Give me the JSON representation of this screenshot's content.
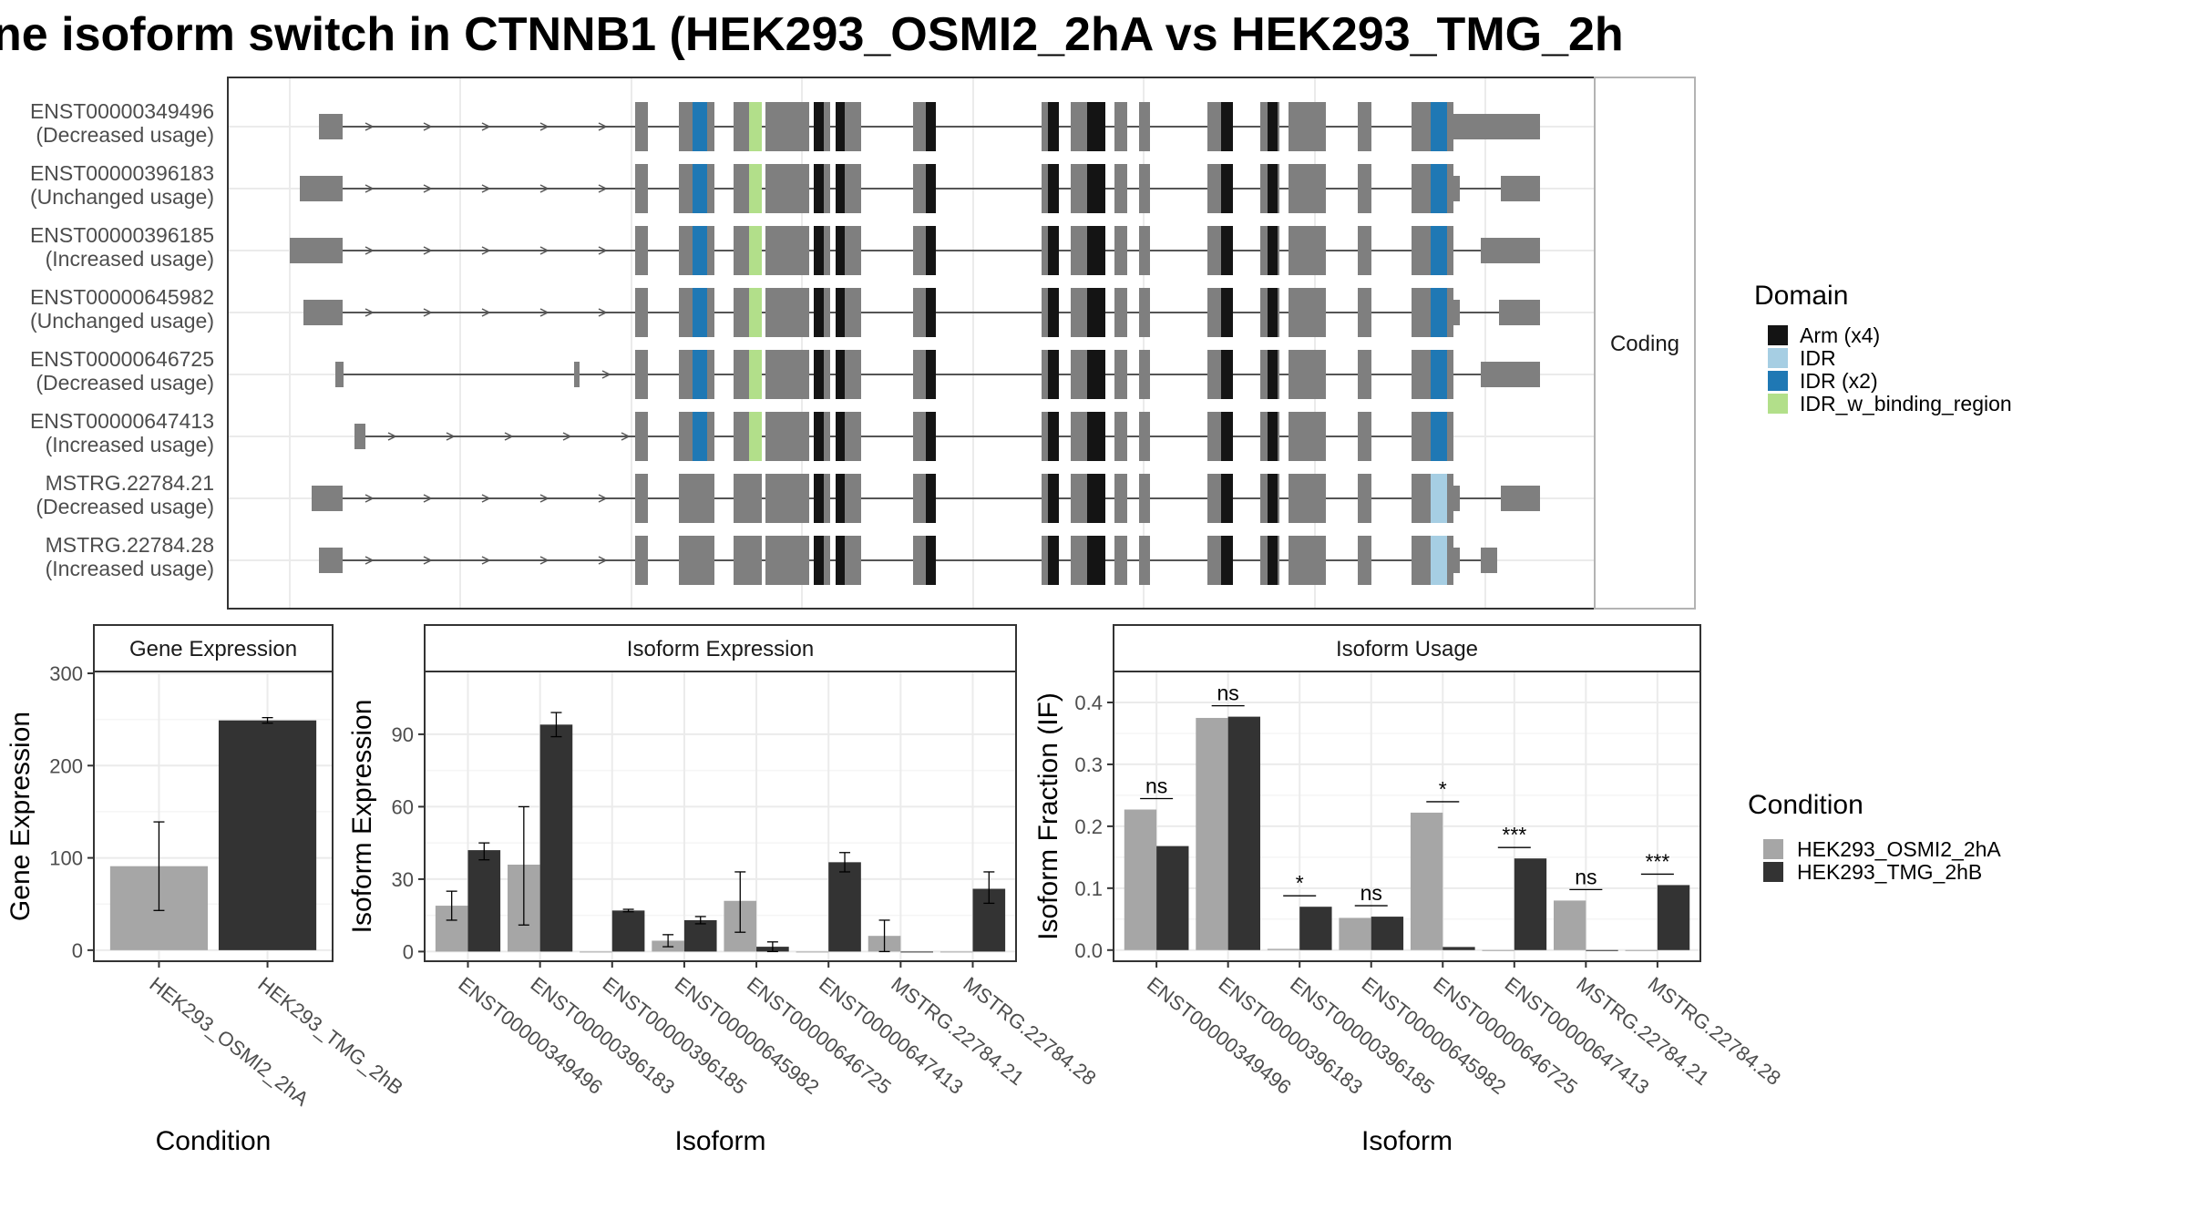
{
  "title": "ne isoform switch in CTNNB1 (HEK293_OSMI2_2hA vs HEK293_TMG_2h",
  "colors": {
    "condition_a": "#a6a6a6",
    "condition_b": "#333333",
    "exon": "#7f7f7f",
    "arm": "#141414",
    "idr": "#a6cee3",
    "idr_x2": "#1f78b4",
    "idr_binding": "#b2df8a"
  },
  "structure": {
    "strip_label": "Coding",
    "transcripts": [
      {
        "id": "ENST00000349496",
        "usage": "(Decreased usage)"
      },
      {
        "id": "ENST00000396183",
        "usage": "(Unchanged usage)"
      },
      {
        "id": "ENST00000396185",
        "usage": "(Increased usage)"
      },
      {
        "id": "ENST00000645982",
        "usage": "(Unchanged usage)"
      },
      {
        "id": "ENST00000646725",
        "usage": "(Decreased usage)"
      },
      {
        "id": "ENST00000647413",
        "usage": "(Increased usage)"
      },
      {
        "id": "MSTRG.22784.21",
        "usage": "(Decreased usage)"
      },
      {
        "id": "MSTRG.22784.28",
        "usage": "(Increased usage)"
      }
    ],
    "domain_legend": {
      "title": "Domain",
      "items": [
        {
          "label": "Arm (x4)",
          "color": "#141414"
        },
        {
          "label": "IDR",
          "color": "#a6cee3"
        },
        {
          "label": "IDR (x2)",
          "color": "#1f78b4"
        },
        {
          "label": "IDR_w_binding_region",
          "color": "#b2df8a"
        }
      ]
    }
  },
  "condition_legend": {
    "title": "Condition",
    "items": [
      {
        "label": "HEK293_OSMI2_2hA",
        "color": "#a6a6a6"
      },
      {
        "label": "HEK293_TMG_2hB",
        "color": "#333333"
      }
    ]
  },
  "chart_data": [
    {
      "type": "bar",
      "title": "Gene Expression",
      "xlabel": "Condition",
      "ylabel": "Gene Expression",
      "categories": [
        "HEK293_OSMI2_2hA",
        "HEK293_TMG_2hB"
      ],
      "values": [
        91,
        249
      ],
      "error_low": [
        43,
        246
      ],
      "error_high": [
        139,
        252
      ],
      "ylim": [
        -12,
        302
      ],
      "yticks": [
        0,
        100,
        200,
        300
      ]
    },
    {
      "type": "bar",
      "title": "Isoform Expression",
      "xlabel": "Isoform",
      "ylabel": "Isoform Expression",
      "categories": [
        "ENST00000349496",
        "ENST00000396183",
        "ENST00000396185",
        "ENST00000645982",
        "ENST00000646725",
        "ENST00000647413",
        "MSTRG.22784.21",
        "MSTRG.22784.28"
      ],
      "series": [
        {
          "name": "HEK293_OSMI2_2hA",
          "values": [
            19,
            36,
            0,
            4.5,
            21,
            0,
            6.5,
            0
          ],
          "error_low": [
            13,
            11,
            null,
            2,
            8,
            null,
            0,
            null
          ],
          "error_high": [
            25,
            60,
            null,
            7,
            33,
            null,
            13,
            null
          ]
        },
        {
          "name": "HEK293_TMG_2hB",
          "values": [
            42,
            94,
            17,
            13,
            2,
            37,
            0,
            26
          ],
          "error_low": [
            38,
            89,
            16.5,
            11.5,
            0,
            33,
            null,
            20
          ],
          "error_high": [
            45,
            99,
            17.5,
            14.5,
            4,
            41,
            null,
            33
          ]
        }
      ],
      "ylim": [
        -4,
        116
      ],
      "yticks": [
        0,
        30,
        60,
        90
      ]
    },
    {
      "type": "bar",
      "title": "Isoform Usage",
      "xlabel": "Isoform",
      "ylabel": "Isoform Fraction (IF)",
      "categories": [
        "ENST00000349496",
        "ENST00000396183",
        "ENST00000396185",
        "ENST00000645982",
        "ENST00000646725",
        "ENST00000647413",
        "MSTRG.22784.21",
        "MSTRG.22784.28"
      ],
      "series": [
        {
          "name": "HEK293_OSMI2_2hA",
          "values": [
            0.227,
            0.375,
            0.002,
            0.052,
            0.222,
            0.0,
            0.08,
            0.0
          ]
        },
        {
          "name": "HEK293_TMG_2hB",
          "values": [
            0.168,
            0.377,
            0.07,
            0.054,
            0.005,
            0.148,
            0.0,
            0.105
          ]
        }
      ],
      "significance": [
        "ns",
        "ns",
        "*",
        "ns",
        "*",
        "***",
        "ns",
        "***"
      ],
      "ylim": [
        -0.018,
        0.45
      ],
      "yticks": [
        0.0,
        0.1,
        0.2,
        0.3,
        0.4
      ],
      "ytick_labels": [
        "0.0",
        "0.1",
        "0.2",
        "0.3",
        "0.4"
      ]
    }
  ]
}
